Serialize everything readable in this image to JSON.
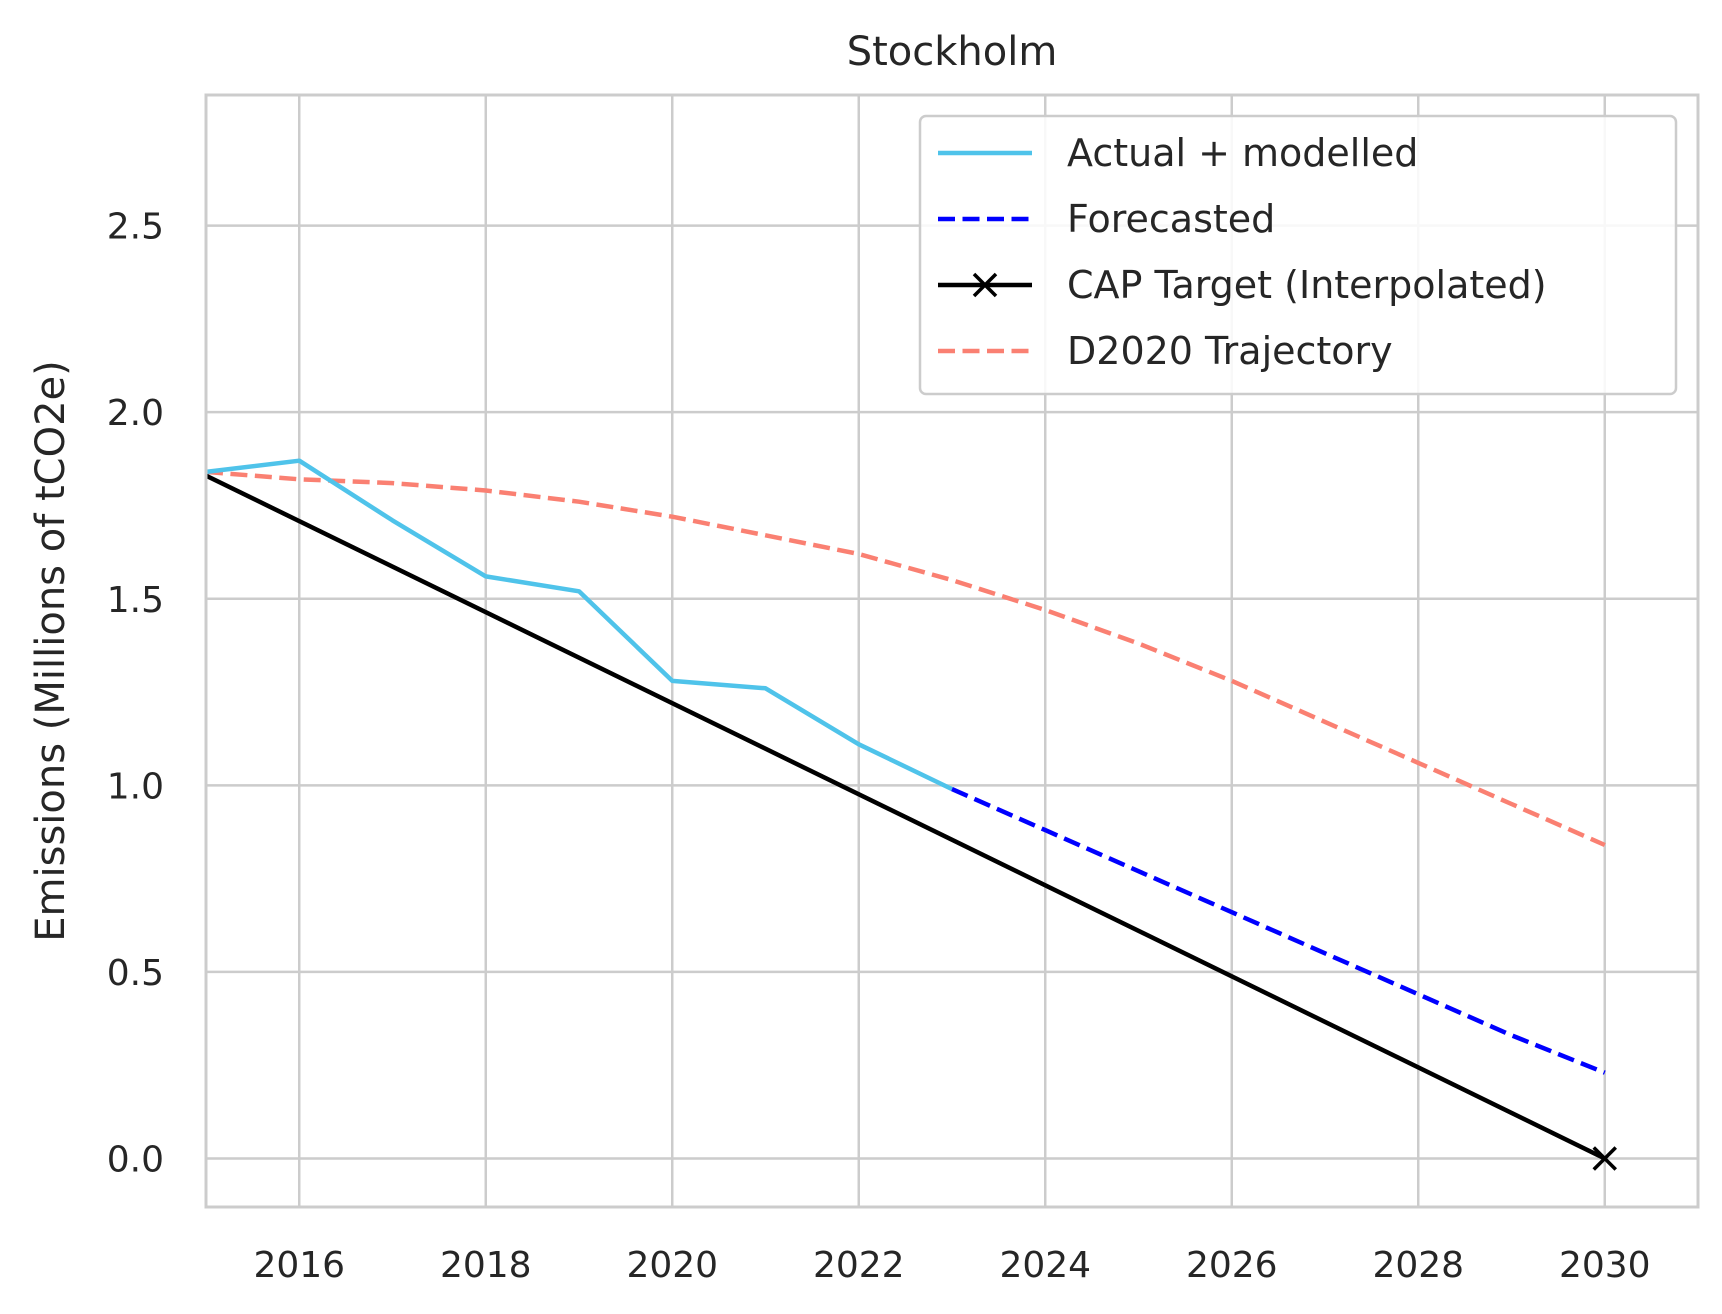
{
  "chart_data": {
    "type": "line",
    "title": "Stockholm",
    "xlabel": "",
    "ylabel": "Emissions (Millions of tCO2e)",
    "xlim": [
      2015,
      2031
    ],
    "ylim": [
      -0.13,
      2.85
    ],
    "x_ticks": [
      2016,
      2018,
      2020,
      2022,
      2024,
      2026,
      2028,
      2030
    ],
    "y_ticks": [
      0.0,
      0.5,
      1.0,
      1.5,
      2.0,
      2.5
    ],
    "x_tick_labels": [
      "2016",
      "2018",
      "2020",
      "2022",
      "2024",
      "2026",
      "2028",
      "2030"
    ],
    "y_tick_labels": [
      "0.0",
      "0.5",
      "1.0",
      "1.5",
      "2.0",
      "2.5"
    ],
    "grid": true,
    "legend_position": "top-right",
    "series": [
      {
        "name": "Actual + modelled",
        "color": "#4fc3ea",
        "style": "solid",
        "marker": "none",
        "x": [
          2015,
          2016,
          2017,
          2018,
          2019,
          2020,
          2021,
          2022,
          2023
        ],
        "y": [
          1.84,
          1.87,
          1.71,
          1.56,
          1.52,
          1.28,
          1.26,
          1.11,
          0.99
        ]
      },
      {
        "name": "Forecasted",
        "color": "#0000ff",
        "style": "dashed",
        "marker": "none",
        "x": [
          2023,
          2024,
          2025,
          2026,
          2027,
          2028,
          2029,
          2030
        ],
        "y": [
          0.99,
          0.88,
          0.77,
          0.66,
          0.55,
          0.44,
          0.33,
          0.23
        ]
      },
      {
        "name": "CAP Target (Interpolated)",
        "color": "#000000",
        "style": "solid",
        "marker": "x",
        "marker_points": [
          [
            2030,
            0.0
          ]
        ],
        "x": [
          2015,
          2030
        ],
        "y": [
          1.83,
          0.0
        ]
      },
      {
        "name": "D2020 Trajectory",
        "color": "#fa8072",
        "style": "dashed",
        "marker": "none",
        "x": [
          2015,
          2016,
          2017,
          2018,
          2019,
          2020,
          2021,
          2022,
          2023,
          2024,
          2025,
          2026,
          2027,
          2028,
          2029,
          2030
        ],
        "y": [
          1.84,
          1.82,
          1.81,
          1.79,
          1.76,
          1.72,
          1.67,
          1.62,
          1.55,
          1.47,
          1.38,
          1.28,
          1.17,
          1.06,
          0.95,
          0.84
        ]
      }
    ]
  }
}
